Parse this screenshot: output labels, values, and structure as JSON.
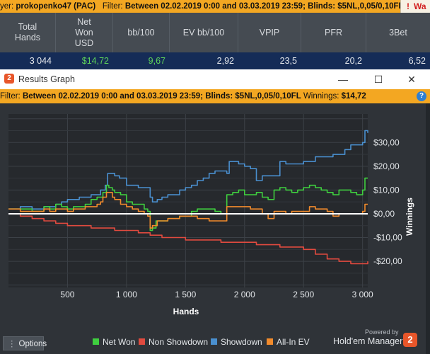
{
  "top_filter": {
    "player_prefix": "yer:",
    "player": "prokopenko47 (PAC)",
    "filter_label": "Filter:",
    "filter_text": "Between 02.02.2019 0:00 and 03.03.2019 23:59; Blinds: $5NL,0,05/0,10FL",
    "warning_label": "Wa"
  },
  "stats_table": {
    "headers": [
      "Total Hands",
      "Net Won USD",
      "bb/100",
      "EV bb/100",
      "VPIP",
      "PFR",
      "3Bet"
    ],
    "values": [
      "3 044",
      "$14,72",
      "9,67",
      "2,92",
      "23,5",
      "20,2",
      "6,52"
    ],
    "value_colors": [
      "#e6e9ed",
      "#5fd35a",
      "#5fd35a",
      "#e6e9ed",
      "#e6e9ed",
      "#e6e9ed",
      "#e6e9ed"
    ]
  },
  "graph_window": {
    "title": "Results Graph",
    "app_icon_text": "2",
    "filter_label": "Filter:",
    "filter_text": "Between 02.02.2019 0:00 and 03.03.2019 23:59; Blinds: $5NL,0,05/0,10FL",
    "winnings_label": "Winnings:",
    "winnings_value": "$14,72",
    "help_icon": "?"
  },
  "chart_data": {
    "type": "line",
    "xlabel": "Hands",
    "ylabel": "Winnings",
    "xlim": [
      0,
      3044
    ],
    "ylim": [
      -31,
      42
    ],
    "x_ticks": [
      500,
      1000,
      1500,
      2000,
      2500,
      3000
    ],
    "x_tick_labels": [
      "500",
      "1 000",
      "1 500",
      "2 000",
      "2 500",
      "3 000"
    ],
    "y_ticks": [
      30,
      20,
      10,
      0,
      -10,
      -20
    ],
    "y_tick_labels": [
      "$30,00",
      "$20,00",
      "$10,00",
      "$0,00",
      "-$10,00",
      "-$20,00"
    ],
    "grid": true,
    "legend_position": "bottom",
    "series": [
      {
        "name": "Showdown",
        "color": "#4a90d0",
        "x": [
          0,
          100,
          200,
          300,
          400,
          450,
          500,
          550,
          600,
          650,
          700,
          780,
          820,
          840,
          880,
          900,
          940,
          1000,
          1050,
          1100,
          1150,
          1200,
          1220,
          1260,
          1300,
          1350,
          1400,
          1450,
          1500,
          1550,
          1600,
          1650,
          1700,
          1750,
          1800,
          1850,
          1870,
          1900,
          1950,
          2000,
          2050,
          2100,
          2150,
          2200,
          2250,
          2300,
          2350,
          2400,
          2450,
          2500,
          2550,
          2600,
          2650,
          2700,
          2750,
          2800,
          2850,
          2900,
          2950,
          3000,
          3020,
          3044
        ],
        "y": [
          2,
          3,
          2,
          3,
          4,
          5,
          6,
          6,
          7,
          7,
          8,
          10,
          12,
          17,
          17,
          16,
          15,
          12,
          12,
          11,
          11,
          7,
          5,
          6,
          7,
          8,
          8,
          10,
          11,
          12,
          14,
          15,
          17,
          18,
          18,
          17,
          22,
          22,
          21,
          20,
          19,
          14,
          16,
          16,
          16,
          22,
          21,
          21,
          21,
          22,
          22,
          24,
          24,
          24,
          25,
          25,
          27,
          29,
          29,
          30,
          35,
          34
        ]
      },
      {
        "name": "Net Won",
        "color": "#3fcf3f",
        "x": [
          0,
          100,
          200,
          300,
          350,
          400,
          450,
          500,
          550,
          600,
          650,
          700,
          750,
          800,
          830,
          850,
          880,
          900,
          950,
          1000,
          1050,
          1100,
          1150,
          1180,
          1200,
          1220,
          1250,
          1300,
          1350,
          1400,
          1450,
          1500,
          1550,
          1600,
          1650,
          1700,
          1750,
          1800,
          1850,
          1900,
          1950,
          2000,
          2050,
          2100,
          2150,
          2200,
          2250,
          2300,
          2350,
          2400,
          2450,
          2500,
          2550,
          2600,
          2650,
          2700,
          2750,
          2800,
          2850,
          2900,
          2950,
          3000,
          3020,
          3044
        ],
        "y": [
          2,
          2,
          1,
          3,
          2,
          4,
          3,
          2,
          3,
          3,
          4,
          6,
          7,
          9,
          12,
          11,
          10,
          9,
          8,
          5,
          4,
          4,
          2,
          1,
          -7,
          -6,
          -3,
          -3,
          -2,
          -2,
          -1,
          -1,
          1,
          2,
          2,
          2,
          1,
          0,
          8,
          9,
          10,
          8,
          8,
          9,
          7,
          6,
          10,
          11,
          10,
          9,
          10,
          11,
          12,
          11,
          10,
          9,
          8,
          10,
          10,
          9,
          8,
          10,
          15,
          15
        ]
      },
      {
        "name": "All-In EV",
        "color": "#f28b2c",
        "x": [
          0,
          100,
          200,
          300,
          350,
          400,
          450,
          500,
          550,
          600,
          650,
          700,
          750,
          780,
          800,
          830,
          850,
          880,
          900,
          950,
          1000,
          1050,
          1100,
          1150,
          1180,
          1200,
          1220,
          1260,
          1300,
          1350,
          1400,
          1450,
          1500,
          1550,
          1600,
          1650,
          1700,
          1750,
          1800,
          1850,
          1900,
          1950,
          2000,
          2050,
          2100,
          2150,
          2200,
          2250,
          2300,
          2350,
          2400,
          2450,
          2500,
          2550,
          2600,
          2650,
          2700,
          2750,
          2800,
          2850,
          2900,
          2950,
          3000,
          3020,
          3044
        ],
        "y": [
          2,
          1,
          1,
          2,
          1,
          2,
          2,
          1,
          2,
          2,
          3,
          3,
          4,
          5,
          7,
          9,
          9,
          7,
          6,
          4,
          3,
          2,
          1,
          0,
          -1,
          -6,
          -5,
          -3,
          -3,
          -2,
          -2,
          -1,
          -1,
          -1,
          -2,
          -2,
          -3,
          -3,
          -3,
          3,
          3,
          3,
          3,
          2,
          2,
          0,
          -2,
          1,
          1,
          0,
          1,
          1,
          1,
          3,
          2,
          2,
          1,
          -1,
          0,
          0,
          0,
          0,
          1,
          4,
          4
        ]
      },
      {
        "name": "Non Showdown",
        "color": "#e04a3f",
        "x": [
          0,
          100,
          200,
          300,
          400,
          500,
          600,
          700,
          800,
          900,
          1000,
          1100,
          1200,
          1300,
          1400,
          1500,
          1600,
          1700,
          1800,
          1900,
          2000,
          2100,
          2200,
          2300,
          2400,
          2500,
          2600,
          2700,
          2800,
          2900,
          2950,
          3000,
          3044
        ],
        "y": [
          0,
          -1,
          -2,
          -3,
          -4,
          -5,
          -5,
          -6,
          -6,
          -7,
          -7,
          -8,
          -9,
          -10,
          -10,
          -11,
          -11,
          -11,
          -12,
          -12,
          -12,
          -13,
          -13,
          -14,
          -14,
          -15,
          -17,
          -19,
          -20,
          -21,
          -21,
          -21,
          -20
        ]
      }
    ]
  },
  "bottom": {
    "options_label": "Options",
    "options_icon": "dots-icon",
    "legend": [
      {
        "label": "Net Won",
        "color": "#3fcf3f"
      },
      {
        "label": "Non Showdown",
        "color": "#e04a3f"
      },
      {
        "label": "Showdown",
        "color": "#4a90d0"
      },
      {
        "label": "All-In EV",
        "color": "#f28b2c"
      }
    ],
    "powered_by": "Powered by",
    "brand": "Hold'em Manager",
    "brand_badge": "2"
  },
  "window_controls": {
    "minimize": "—",
    "maximize": "☐",
    "close": "✕"
  }
}
